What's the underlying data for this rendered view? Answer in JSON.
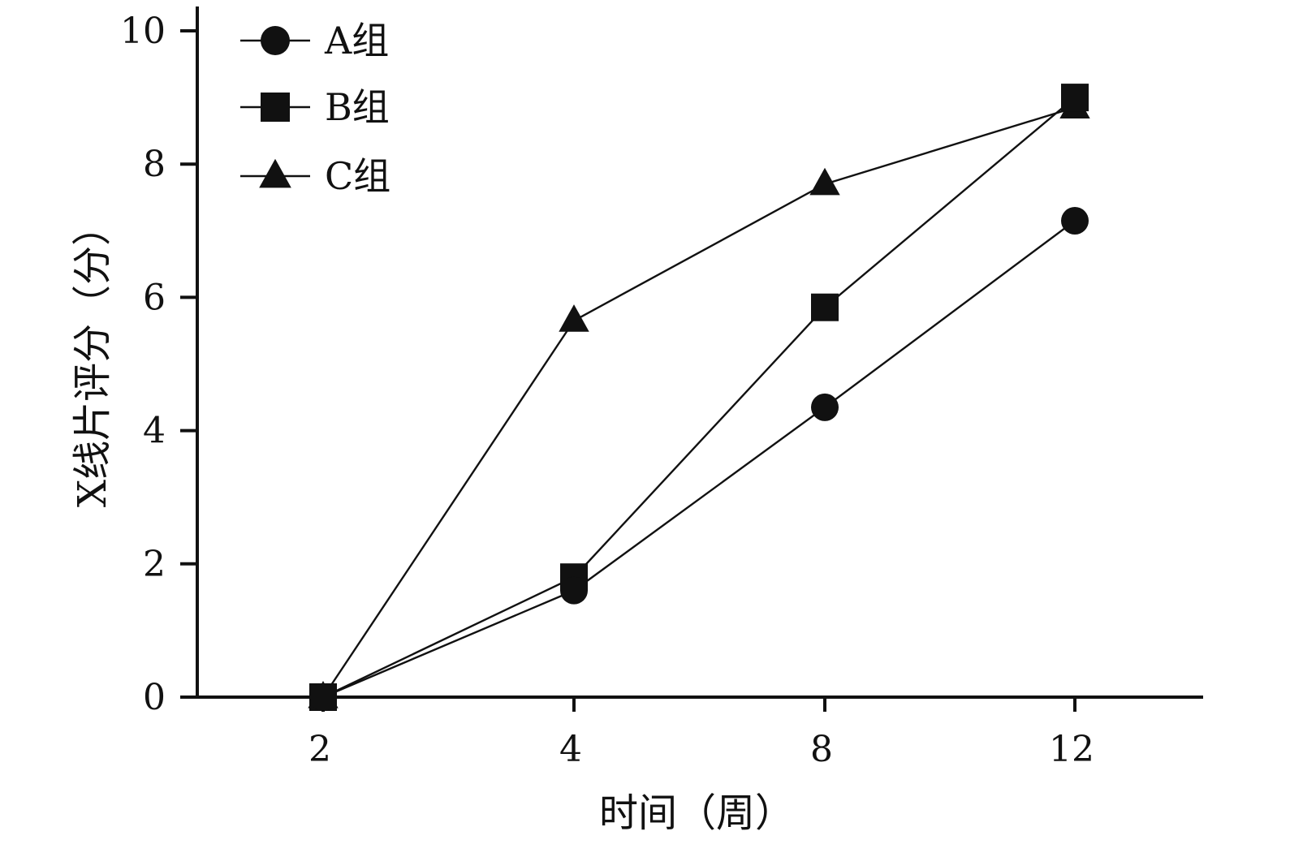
{
  "chart_data": {
    "type": "line",
    "title": "",
    "xlabel": "时间（周）",
    "ylabel": "X线片评分（分）",
    "categories": [
      "2",
      "4",
      "8",
      "12"
    ],
    "ylim": [
      0,
      10
    ],
    "yticks": [
      0,
      2,
      4,
      6,
      8,
      10
    ],
    "grid": false,
    "legend": "top-left",
    "series": [
      {
        "name": "A组",
        "marker": "circle",
        "values": [
          0,
          1.6,
          4.35,
          7.15
        ]
      },
      {
        "name": "B组",
        "marker": "square",
        "values": [
          0,
          1.8,
          5.85,
          9.0
        ]
      },
      {
        "name": "C组",
        "marker": "triangle",
        "values": [
          0,
          5.65,
          7.7,
          8.85
        ]
      }
    ],
    "colors": {
      "line": "#111111",
      "marker": "#111111"
    }
  }
}
